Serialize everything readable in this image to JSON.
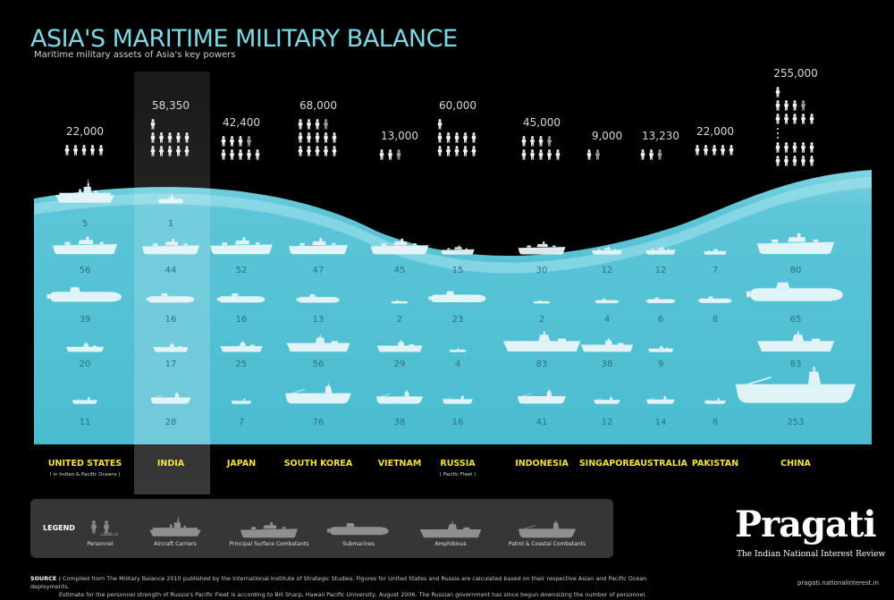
{
  "header": {
    "title": "ASIA'S MARITIME MILITARY BALANCE",
    "subtitle": "Maritime military assets of Asia's key powers"
  },
  "chart_data": {
    "type": "table",
    "title": "ASIA'S MARITIME MILITARY BALANCE",
    "subtitle": "Maritime military assets of Asia's key powers",
    "highlighted_country": "INDIA",
    "countries": [
      {
        "name": "UNITED STATES",
        "note": "( in Indian & Pacific Oceans )",
        "personnel": "22,000",
        "icon_rows": [
          "5"
        ],
        "carriers": 5,
        "principal_surface_combatants": 56,
        "submarines": 39,
        "amphibious": 20,
        "patrol_coastal": 11
      },
      {
        "name": "INDIA",
        "note": "",
        "personnel": "58,350",
        "icon_rows": [
          "1",
          "5",
          "5"
        ],
        "carriers": 1,
        "principal_surface_combatants": 44,
        "submarines": 16,
        "amphibious": 17,
        "patrol_coastal": 28
      },
      {
        "name": "JAPAN",
        "note": "",
        "personnel": "42,400",
        "icon_rows": [
          "4",
          "5"
        ],
        "carriers": null,
        "principal_surface_combatants": 52,
        "submarines": 16,
        "amphibious": 25,
        "patrol_coastal": 7
      },
      {
        "name": "SOUTH KOREA",
        "note": "",
        "personnel": "68,000",
        "icon_rows": [
          "4",
          "5",
          "5"
        ],
        "carriers": null,
        "principal_surface_combatants": 47,
        "submarines": 13,
        "amphibious": 56,
        "patrol_coastal": 76
      },
      {
        "name": "VIETNAM",
        "note": "",
        "personnel": "13,000",
        "icon_rows": [
          "3"
        ],
        "carriers": null,
        "principal_surface_combatants": 45,
        "submarines": 2,
        "amphibious": 29,
        "patrol_coastal": 38
      },
      {
        "name": "RUSSIA",
        "note": "( Pacific Fleet )",
        "personnel": "60,000",
        "icon_rows": [
          "1",
          "5",
          "5"
        ],
        "carriers": null,
        "principal_surface_combatants": 15,
        "submarines": 23,
        "amphibious": 4,
        "patrol_coastal": 16
      },
      {
        "name": "INDONESIA",
        "note": "",
        "personnel": "45,000",
        "icon_rows": [
          "4",
          "5"
        ],
        "carriers": null,
        "principal_surface_combatants": 30,
        "submarines": 2,
        "amphibious": 83,
        "patrol_coastal": 41
      },
      {
        "name": "SINGAPORE",
        "note": "",
        "personnel": "9,000",
        "icon_rows": [
          "2"
        ],
        "carriers": null,
        "principal_surface_combatants": 12,
        "submarines": 4,
        "amphibious": 38,
        "patrol_coastal": 12
      },
      {
        "name": "AUSTRALIA",
        "note": "",
        "personnel": "13,230",
        "icon_rows": [
          "3"
        ],
        "carriers": null,
        "principal_surface_combatants": 12,
        "submarines": 6,
        "amphibious": 9,
        "patrol_coastal": 14
      },
      {
        "name": "PAKISTAN",
        "note": "",
        "personnel": "22,000",
        "icon_rows": [
          "5"
        ],
        "carriers": null,
        "principal_surface_combatants": 7,
        "submarines": 8,
        "amphibious": null,
        "patrol_coastal": 8
      },
      {
        "name": "CHINA",
        "note": "",
        "personnel": "255,000",
        "icon_rows": [
          "1",
          "4",
          "5",
          "dots",
          "5",
          "5"
        ],
        "carriers": null,
        "principal_surface_combatants": 80,
        "submarines": 65,
        "amphibious": 83,
        "patrol_coastal": 253
      }
    ]
  },
  "legend": {
    "title": "LEGEND",
    "personnel_small_labels": [
      "=1000",
      "=5000"
    ],
    "items": [
      {
        "key": "personnel",
        "label": "Personnel"
      },
      {
        "key": "carrier",
        "label": "Aircraft Carriers"
      },
      {
        "key": "surface",
        "label": "Principal Surface Combatants"
      },
      {
        "key": "submarine",
        "label": "Submarines"
      },
      {
        "key": "amphibious",
        "label": "Amphibious"
      },
      {
        "key": "patrol",
        "label": "Patrol & Coastal Combatants"
      }
    ]
  },
  "brand": {
    "name": "Pragati",
    "tagline": "The Indian National Interest Review",
    "site": "pragati.nationalinterest.in"
  },
  "source": {
    "label": "SOURCE :",
    "line1": "Compiled from The Military Balance 2010 published by the International Institute of Strategic Studies. Figures for United States and Russia are calculated based on their respective Asian and Pacific Ocean deployments.",
    "line2": "Estimate for the personnel strength of Russia's Pacific Fleet is according to Bill Sharp, Hawaii Pacific University, August 2006. The Russian government has since begun downsizing the number of personnel."
  },
  "colors": {
    "background": "#000000",
    "water": "#55c3d6",
    "water_light": "#8fdbe6",
    "ships": "#e8f6f9",
    "country_labels": "#f3e23a",
    "title": "#7fd8e6",
    "highlight_column": "#ffffff"
  }
}
